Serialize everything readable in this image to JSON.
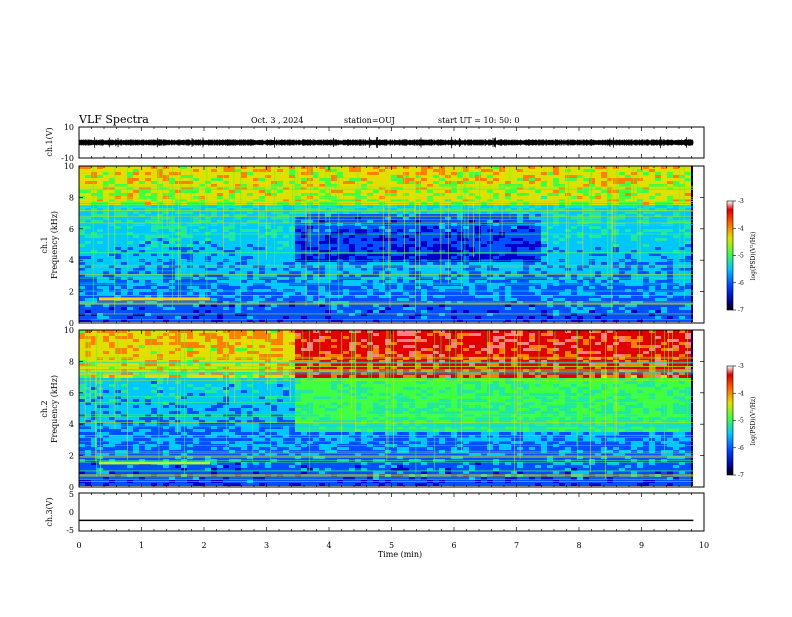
{
  "header": {
    "title": "VLF Spectra",
    "date": "Oct. 3 , 2024",
    "station": "station=OUJ",
    "start": "start UT = 10: 50: 0"
  },
  "colors": {
    "colormap": [
      "#000070",
      "#0000c8",
      "#0050ff",
      "#00c8ff",
      "#20e8a0",
      "#40ff40",
      "#e0e000",
      "#ff8000",
      "#e00000",
      "#ff8080",
      "#ffffff"
    ]
  },
  "chart_data": [
    {
      "type": "line",
      "panel": "ch1-waveform",
      "ylabel": "ch.1(V)",
      "ylim": [
        -10,
        10
      ],
      "yticks": [
        "10",
        "-10"
      ],
      "y_level": 0,
      "xlim": [
        0,
        9.83
      ]
    },
    {
      "type": "heatmap",
      "panel": "ch1-spectrogram",
      "ylabel_line1": "ch.1",
      "ylabel_line2": "Frequency (kHz)",
      "ylim": [
        0,
        10
      ],
      "yticks": [
        "0",
        "2",
        "4",
        "6",
        "8",
        "10"
      ],
      "xlim": [
        0,
        9.83
      ],
      "colorbar": {
        "label": "log(PSD)(V²/Hz)",
        "range": [
          -7,
          -3
        ],
        "ticks": [
          "-3",
          "-4",
          "-5",
          "-6",
          "-7"
        ]
      }
    },
    {
      "type": "heatmap",
      "panel": "ch2-spectrogram",
      "ylabel_line1": "ch.2",
      "ylabel_line2": "Frequency (kHz)",
      "ylim": [
        0,
        10
      ],
      "yticks": [
        "0",
        "2",
        "4",
        "6",
        "8",
        "10"
      ],
      "xlim": [
        0,
        9.83
      ],
      "colorbar": {
        "label": "log(PSD)(V²/Hz)",
        "range": [
          -7,
          -3
        ],
        "ticks": [
          "-3",
          "-4",
          "-5",
          "-6",
          "-7"
        ]
      }
    },
    {
      "type": "line",
      "panel": "ch3-waveform",
      "ylabel": "ch.3(V)",
      "ylim": [
        -5,
        5
      ],
      "yticks": [
        "5",
        "0",
        "-5"
      ],
      "y_level": -2.2,
      "xlim": [
        0,
        9.83
      ]
    }
  ],
  "xaxis": {
    "label": "Time (min)",
    "range": [
      0,
      10
    ],
    "ticks": [
      "0",
      "1",
      "2",
      "3",
      "4",
      "5",
      "6",
      "7",
      "8",
      "9",
      "10"
    ]
  }
}
